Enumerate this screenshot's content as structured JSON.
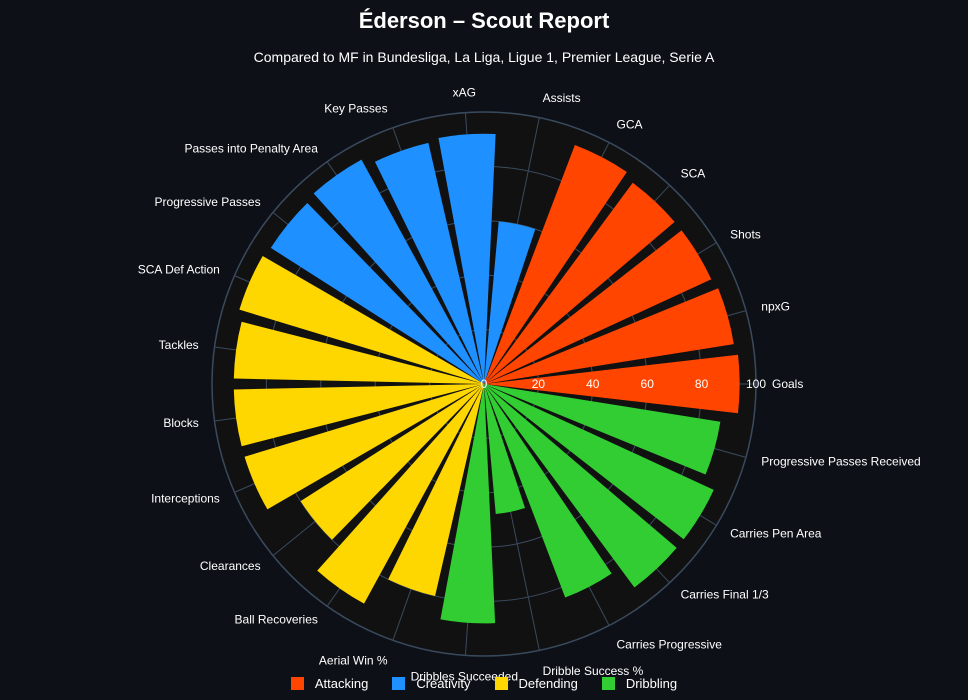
{
  "chart_data": {
    "type": "polar-bar",
    "title": "Éderson – Scout Report",
    "subtitle": "Compared to MF in Bundesliga, La Liga, Ligue 1, Premier League, Serie A",
    "radial_axis": {
      "range": [
        0,
        100
      ],
      "tick_labels": [
        "0",
        "20",
        "40",
        "60",
        "80",
        "100"
      ]
    },
    "categories": [
      "Goals",
      "npxG",
      "Shots",
      "SCA",
      "GCA",
      "Assists",
      "xAG",
      "Key Passes",
      "Passes into Penalty Area",
      "Progressive Passes",
      "SCA Def Action",
      "Tackles",
      "Blocks",
      "Interceptions",
      "Clearances",
      "Ball Recoveries",
      "Aerial Win %",
      "Dribbles Succeeded",
      "Dribble Success %",
      "Carries Progressive",
      "Carries Final 1/3",
      "Carries Pen Area",
      "Progressive Passes Received"
    ],
    "values": [
      94,
      93,
      92,
      92,
      94,
      60,
      92,
      91,
      94,
      93,
      94,
      92,
      92,
      92,
      80,
      92,
      80,
      88,
      48,
      84,
      93,
      93,
      88
    ],
    "groups": [
      "Attacking",
      "Attacking",
      "Attacking",
      "Attacking",
      "Attacking",
      "Creativity",
      "Creativity",
      "Creativity",
      "Creativity",
      "Creativity",
      "Defending",
      "Defending",
      "Defending",
      "Defending",
      "Defending",
      "Defending",
      "Defending",
      "Dribbling",
      "Dribbling",
      "Dribbling",
      "Dribbling",
      "Dribbling",
      "Dribbling"
    ],
    "legend": [
      {
        "name": "Attacking",
        "color": "#ff4500"
      },
      {
        "name": "Creativity",
        "color": "#1e90ff"
      },
      {
        "name": "Defending",
        "color": "#ffd700"
      },
      {
        "name": "Dribbling",
        "color": "#32cd32"
      }
    ],
    "legend_position": "bottom",
    "grid": true,
    "colors": {
      "background": "#0d1117",
      "plot_background": "#111111",
      "grid": "#3a4a5e",
      "text": "#ffffff"
    }
  }
}
